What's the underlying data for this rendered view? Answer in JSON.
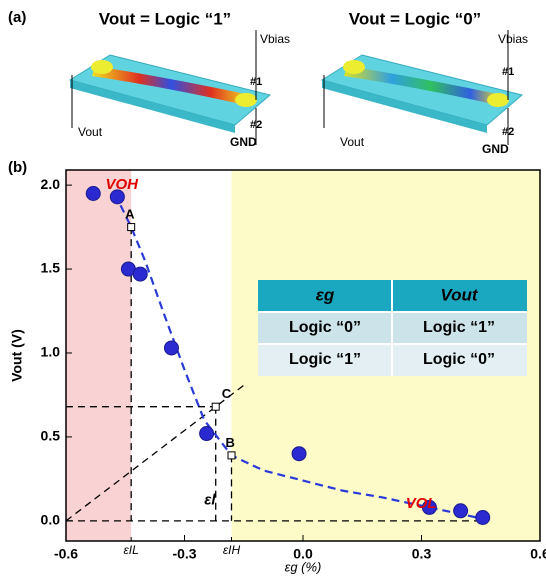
{
  "panel_a": {
    "label": "(a)",
    "left": {
      "title": "Vout = Logic “1”",
      "vbias": "Vbias",
      "top": "#1",
      "bottom": "#2",
      "gnd": "GND",
      "vout": "Vout"
    },
    "right": {
      "title": "Vout = Logic “0”",
      "vbias": "Vbias",
      "top": "#1",
      "bottom": "#2",
      "gnd": "GND",
      "vout": "Vout"
    }
  },
  "chart_data": {
    "type": "scatter",
    "panel_label": "(b)",
    "x_label": "εg (%)",
    "y_label": "Vout (V)",
    "xlim": [
      -0.6,
      0.6
    ],
    "ylim": [
      -0.12,
      2.09
    ],
    "xticks": [
      -0.6,
      -0.3,
      {
        "value": 0,
        "label": "0.0"
      },
      0.3,
      0.6
    ],
    "extra_xticks": [
      {
        "value": -0.435,
        "label": "εIL"
      },
      {
        "value": -0.181,
        "label": "εIH"
      }
    ],
    "yticks": [
      {
        "value": 0,
        "label": "0.0"
      },
      0.5,
      {
        "value": 1,
        "label": "1.0"
      },
      1.5,
      {
        "value": 2,
        "label": "2.0"
      }
    ],
    "regions": [
      {
        "color": "#f9d3d3",
        "xlim": [
          -0.6,
          -0.435
        ]
      },
      {
        "color": "#fdfbc8",
        "xlim": [
          -0.181,
          0.6
        ]
      }
    ],
    "series": [
      {
        "name": "data",
        "color": "#2a2ad0",
        "x": [
          -0.531,
          -0.47,
          -0.442,
          -0.412,
          -0.333,
          -0.244,
          -0.01,
          0.32,
          0.399,
          0.455
        ],
        "values": [
          1.95,
          1.93,
          1.5,
          1.47,
          1.03,
          0.52,
          0.4,
          0.08,
          0.06,
          0.02
        ]
      },
      {
        "name": "fit",
        "color": "#2a3ad8",
        "x": [
          -0.462,
          -0.435,
          -0.4,
          -0.35,
          -0.3,
          -0.25,
          -0.181,
          -0.1,
          0,
          0.1,
          0.2,
          0.3,
          0.4,
          0.46
        ],
        "values": [
          1.88,
          1.75,
          1.55,
          1.22,
          0.9,
          0.6,
          0.39,
          0.3,
          0.24,
          0.18,
          0.14,
          0.09,
          0.04,
          0.01
        ]
      }
    ],
    "points": [
      {
        "label": "A",
        "x": -0.435,
        "y": 1.75
      },
      {
        "label": "B",
        "x": -0.181,
        "y": 0.39
      },
      {
        "label": "C",
        "x": -0.221,
        "y": 0.68
      }
    ],
    "annotations": [
      {
        "text": "VOH",
        "x": -0.5,
        "y": 2.0,
        "color": "#e00000"
      },
      {
        "text": "VOL",
        "x": 0.26,
        "y": 0.1,
        "color": "#e00000"
      },
      {
        "text": "εl",
        "x": -0.25,
        "y": 0.12,
        "color": "#000000"
      }
    ],
    "table": {
      "header": [
        "εg",
        "Vout"
      ],
      "rows": [
        [
          "Logic “0”",
          "Logic “1”"
        ],
        [
          "Logic “1”",
          "Logic “0”"
        ]
      ]
    }
  }
}
